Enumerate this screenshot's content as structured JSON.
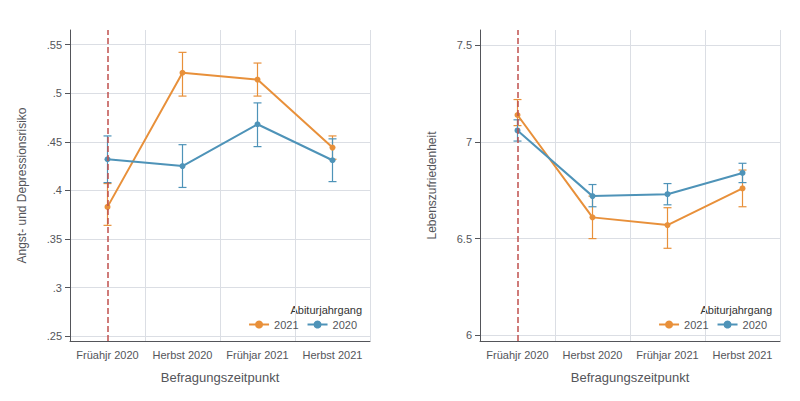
{
  "chart_data": [
    {
      "type": "line",
      "categories": [
        "Früahjr 2020",
        "Herbst 2020",
        "Frühjar 2021",
        "Herbst 2021"
      ],
      "xlabel": "Befragungszeitpunkt",
      "ylabel": "Angst- und Depressionsrisiko",
      "ylim": [
        0.245,
        0.565
      ],
      "yticks": [
        {
          "value": 0.25,
          "label": ".25"
        },
        {
          "value": 0.3,
          "label": ".3"
        },
        {
          "value": 0.35,
          "label": ".35"
        },
        {
          "value": 0.4,
          "label": ".4"
        },
        {
          "value": 0.45,
          "label": ".45"
        },
        {
          "value": 0.5,
          "label": ".5"
        },
        {
          "value": 0.55,
          "label": ".55"
        }
      ],
      "grid": true,
      "legend": "lower right",
      "legend_title": "Abiturjahrgang",
      "marker": "circle",
      "series": [
        {
          "name": "2021",
          "color": "#E8903A",
          "values": [
            0.383,
            0.521,
            0.514,
            0.444
          ],
          "error_low": [
            0.019,
            0.024,
            0.017,
            0.012
          ],
          "error_high": [
            0.024,
            0.021,
            0.017,
            0.012
          ]
        },
        {
          "name": "2020",
          "color": "#4E93B8",
          "values": [
            0.432,
            0.425,
            0.468,
            0.431
          ],
          "error_low": [
            0.024,
            0.022,
            0.023,
            0.022
          ],
          "error_high": [
            0.024,
            0.022,
            0.022,
            0.022
          ]
        }
      ],
      "vline": {
        "x": "Früahjr 2020",
        "color": "#C0504D",
        "line_style": "dashed"
      }
    },
    {
      "type": "line",
      "categories": [
        "Früahjr 2020",
        "Herbst 2020",
        "Frühjar 2021",
        "Herbst 2021"
      ],
      "xlabel": "Befragungszeitpunkt",
      "ylabel": "Lebenszufriedenheit",
      "ylim": [
        5.97,
        7.58
      ],
      "yticks": [
        6,
        6.5,
        7,
        7.5
      ],
      "grid": true,
      "legend": "lower right",
      "legend_title": "Abiturjahrgang",
      "marker": "circle",
      "series": [
        {
          "name": "2021",
          "color": "#E8903A",
          "values": [
            7.14,
            6.61,
            6.57,
            6.76
          ],
          "error_low": [
            0.055,
            0.11,
            0.12,
            0.095
          ],
          "error_high": [
            0.08,
            0.11,
            0.09,
            0.095
          ]
        },
        {
          "name": "2020",
          "color": "#4E93B8",
          "values": [
            7.06,
            6.72,
            6.73,
            6.84
          ],
          "error_low": [
            0.055,
            0.055,
            0.055,
            0.05
          ],
          "error_high": [
            0.055,
            0.06,
            0.055,
            0.05
          ]
        }
      ],
      "vline": {
        "x": "Früahjr 2020",
        "color": "#C0504D",
        "line_style": "dashed"
      }
    }
  ]
}
